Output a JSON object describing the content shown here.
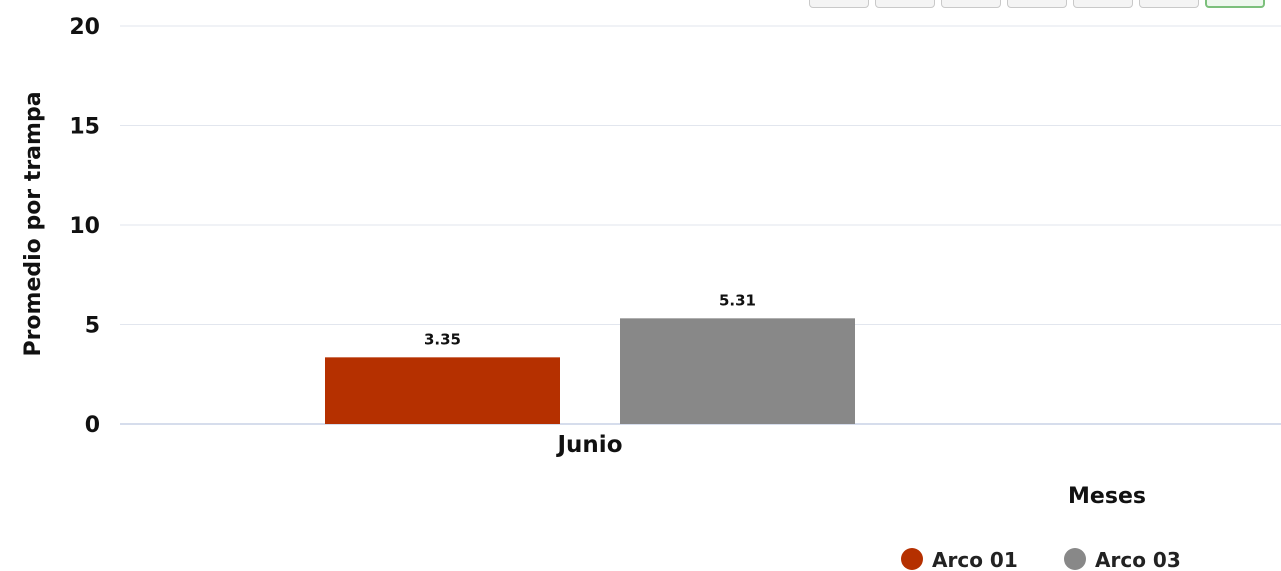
{
  "chart_data": {
    "type": "bar",
    "categories": [
      "Junio"
    ],
    "series": [
      {
        "name": "Arco 01",
        "values": [
          3.35
        ],
        "color": "#B53000"
      },
      {
        "name": "Arco 03",
        "values": [
          5.31
        ],
        "color": "#888888"
      }
    ],
    "data_labels": [
      "3.35",
      "5.31"
    ],
    "xlabel": "Meses",
    "ylabel": "Promedio por trampa",
    "ylim": [
      0,
      20
    ],
    "yticks": [
      0,
      5,
      10,
      15,
      20
    ],
    "grid": true,
    "legend_position": "bottom-right"
  },
  "toolbar": {
    "button_count": 7,
    "active_index": 6
  }
}
